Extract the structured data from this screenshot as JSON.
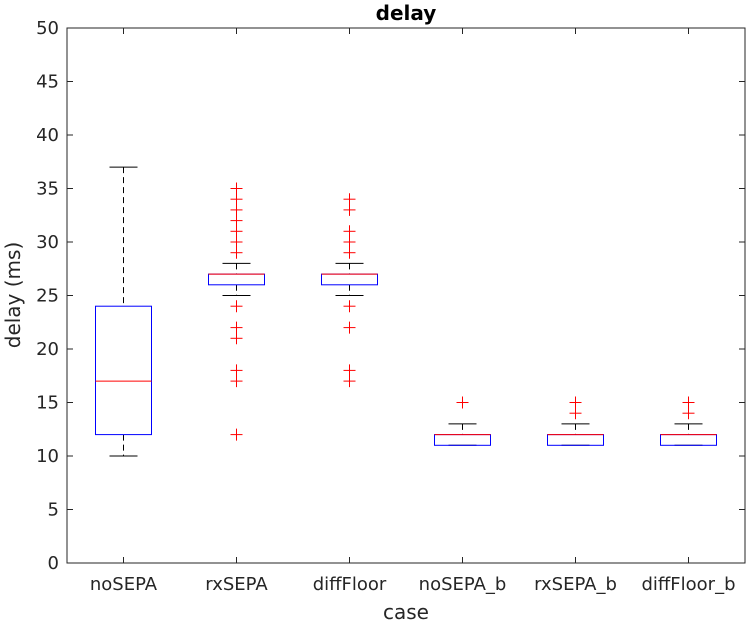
{
  "chart_data": {
    "type": "boxplot",
    "title": "delay",
    "xlabel": "case",
    "ylabel": "delay (ms)",
    "ylim": [
      0,
      50
    ],
    "yticks": [
      0,
      5,
      10,
      15,
      20,
      25,
      30,
      35,
      40,
      45,
      50
    ],
    "grid": false,
    "categories": [
      "noSEPA",
      "rxSEPA",
      "diffFloor",
      "noSEPA_b",
      "rxSEPA_b",
      "diffFloor_b"
    ],
    "colors": {
      "box": "#0000ff",
      "median": "#ff0000",
      "whisker": "#000000",
      "outlier": "#ff0000"
    },
    "series": [
      {
        "category": "noSEPA",
        "whisker_low": 10,
        "q1": 12,
        "median": 17,
        "q3": 24,
        "whisker_high": 37,
        "outliers": []
      },
      {
        "category": "rxSEPA",
        "whisker_low": 25,
        "q1": 26,
        "median": 27,
        "q3": 27,
        "whisker_high": 28,
        "outliers": [
          12,
          17,
          18,
          21,
          22,
          24,
          29,
          30,
          31,
          32,
          33,
          34,
          35
        ]
      },
      {
        "category": "diffFloor",
        "whisker_low": 25,
        "q1": 26,
        "median": 27,
        "q3": 27,
        "whisker_high": 28,
        "outliers": [
          17,
          18,
          22,
          24,
          29,
          30,
          31,
          33,
          34
        ]
      },
      {
        "category": "noSEPA_b",
        "whisker_low": 11,
        "q1": 11,
        "median": 12,
        "q3": 12,
        "whisker_high": 13,
        "outliers": [
          15
        ]
      },
      {
        "category": "rxSEPA_b",
        "whisker_low": 11,
        "q1": 11,
        "median": 12,
        "q3": 12,
        "whisker_high": 13,
        "outliers": [
          14,
          15
        ]
      },
      {
        "category": "diffFloor_b",
        "whisker_low": 11,
        "q1": 11,
        "median": 12,
        "q3": 12,
        "whisker_high": 13,
        "outliers": [
          14,
          15
        ]
      }
    ]
  }
}
